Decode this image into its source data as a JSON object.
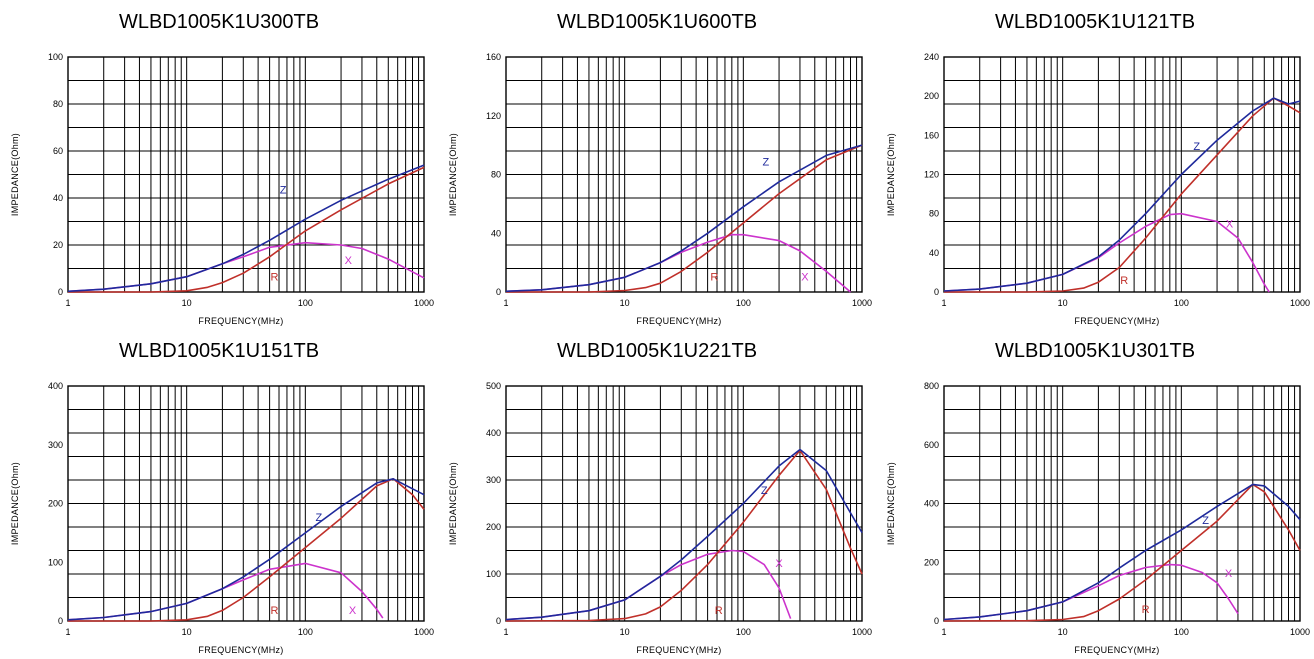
{
  "colors": {
    "Z": "#1f2a9c",
    "R": "#c0302a",
    "X": "#cc33cc",
    "grid": "#000000"
  },
  "chart_data": [
    {
      "type": "line",
      "title": "WLBD1005K1U300TB",
      "xlabel": "FREQUENCY(MHz)",
      "ylabel": "IMPEDANCE(Ohm)",
      "xscale": "log",
      "xlim": [
        1,
        1000
      ],
      "ylim": [
        0,
        100
      ],
      "xticks": [
        "1",
        "10",
        "100",
        "1000"
      ],
      "yticks": [
        "0",
        "20",
        "40",
        "60",
        "80",
        "100"
      ],
      "grid": true,
      "series": [
        {
          "name": "Z",
          "x": [
            1,
            2,
            5,
            10,
            20,
            30,
            50,
            100,
            200,
            500,
            1000
          ],
          "values": [
            0.3,
            1.2,
            3.5,
            6.5,
            12,
            16,
            22,
            31,
            39,
            48,
            54
          ]
        },
        {
          "name": "R",
          "x": [
            1,
            5,
            10,
            15,
            20,
            30,
            50,
            100,
            200,
            500,
            1000
          ],
          "values": [
            0,
            0,
            0.5,
            2,
            4,
            8,
            15,
            26,
            35,
            46,
            53
          ]
        },
        {
          "name": "X",
          "x": [
            1,
            2,
            5,
            10,
            20,
            30,
            50,
            100,
            200,
            300,
            500,
            1000
          ],
          "values": [
            0.3,
            1.2,
            3.5,
            6.5,
            12,
            15,
            19,
            21,
            20,
            18.5,
            14,
            6
          ]
        }
      ],
      "curve_labels": [
        {
          "text": "Z",
          "x": 65,
          "y": 42
        },
        {
          "text": "R",
          "x": 55,
          "y": 5
        },
        {
          "text": "X",
          "x": 230,
          "y": 12
        }
      ]
    },
    {
      "type": "line",
      "title": "WLBD1005K1U600TB",
      "xlabel": "FREQUENCY(MHz)",
      "ylabel": "IMPEDANCE(Ohm)",
      "xscale": "log",
      "xlim": [
        1,
        1000
      ],
      "ylim": [
        0,
        160
      ],
      "xticks": [
        "1",
        "10",
        "100",
        "1000"
      ],
      "yticks": [
        "0",
        "40",
        "80",
        "120",
        "160"
      ],
      "grid": true,
      "series": [
        {
          "name": "Z",
          "x": [
            1,
            2,
            5,
            10,
            20,
            30,
            50,
            100,
            200,
            500,
            1000
          ],
          "values": [
            0.5,
            1.5,
            5,
            10,
            20,
            28,
            40,
            58,
            75,
            93,
            100
          ]
        },
        {
          "name": "R",
          "x": [
            1,
            5,
            10,
            15,
            20,
            30,
            50,
            100,
            200,
            500,
            1000
          ],
          "values": [
            0,
            0,
            1,
            3,
            6,
            14,
            27,
            47,
            67,
            90,
            100
          ]
        },
        {
          "name": "X",
          "x": [
            1,
            2,
            5,
            10,
            20,
            30,
            50,
            80,
            100,
            200,
            300,
            500,
            700,
            800
          ],
          "values": [
            0.5,
            1.5,
            5,
            10,
            20,
            27,
            34,
            39,
            39,
            35,
            28,
            14,
            4,
            0
          ]
        }
      ],
      "curve_labels": [
        {
          "text": "Z",
          "x": 155,
          "y": 86
        },
        {
          "text": "R",
          "x": 57,
          "y": 8
        },
        {
          "text": "X",
          "x": 330,
          "y": 8
        }
      ]
    },
    {
      "type": "line",
      "title": "WLBD1005K1U121TB",
      "xlabel": "FREQUENCY(MHz)",
      "ylabel": "IMPEDANCE(Ohm)",
      "xscale": "log",
      "xlim": [
        1,
        1000
      ],
      "ylim": [
        0,
        240
      ],
      "xticks": [
        "1",
        "10",
        "100",
        "1000"
      ],
      "yticks": [
        "0",
        "40",
        "80",
        "120",
        "160",
        "200",
        "240"
      ],
      "grid": true,
      "series": [
        {
          "name": "Z",
          "x": [
            1,
            2,
            5,
            10,
            20,
            30,
            50,
            100,
            200,
            400,
            600,
            800,
            1000
          ],
          "values": [
            1,
            3,
            9,
            18,
            36,
            53,
            80,
            120,
            155,
            185,
            198,
            192,
            195
          ]
        },
        {
          "name": "R",
          "x": [
            1,
            5,
            10,
            15,
            20,
            30,
            50,
            100,
            200,
            400,
            600,
            800,
            1000
          ],
          "values": [
            0,
            0,
            1,
            4,
            10,
            25,
            55,
            100,
            140,
            180,
            198,
            190,
            183
          ]
        },
        {
          "name": "X",
          "x": [
            1,
            2,
            5,
            10,
            20,
            30,
            50,
            80,
            100,
            200,
            300,
            400,
            500,
            550
          ],
          "values": [
            1,
            3,
            9,
            18,
            35,
            50,
            67,
            79,
            80,
            72,
            55,
            30,
            8,
            0
          ]
        }
      ],
      "curve_labels": [
        {
          "text": "Z",
          "x": 135,
          "y": 145
        },
        {
          "text": "R",
          "x": 33,
          "y": 8
        },
        {
          "text": "X",
          "x": 255,
          "y": 66
        }
      ]
    },
    {
      "type": "line",
      "title": "WLBD1005K1U151TB",
      "xlabel": "FREQUENCY(MHz)",
      "ylabel": "IMPEDANCE(Ohm)",
      "xscale": "log",
      "xlim": [
        1,
        1000
      ],
      "ylim": [
        0,
        400
      ],
      "xticks": [
        "1",
        "10",
        "100",
        "1000"
      ],
      "yticks": [
        "0",
        "100",
        "200",
        "300",
        "400"
      ],
      "grid": true,
      "series": [
        {
          "name": "Z",
          "x": [
            1,
            2,
            5,
            10,
            20,
            30,
            50,
            100,
            200,
            400,
            550,
            800,
            1000
          ],
          "values": [
            2,
            6,
            16,
            30,
            55,
            75,
            105,
            150,
            195,
            235,
            242,
            225,
            215
          ]
        },
        {
          "name": "R",
          "x": [
            1,
            5,
            10,
            15,
            20,
            30,
            50,
            100,
            200,
            400,
            550,
            800,
            1000
          ],
          "values": [
            0,
            0,
            2,
            8,
            18,
            40,
            75,
            125,
            175,
            230,
            242,
            215,
            190
          ]
        },
        {
          "name": "X",
          "x": [
            1,
            2,
            5,
            10,
            20,
            30,
            50,
            100,
            200,
            300,
            400,
            450
          ],
          "values": [
            2,
            6,
            16,
            30,
            55,
            70,
            88,
            98,
            82,
            50,
            20,
            5
          ]
        }
      ],
      "curve_labels": [
        {
          "text": "Z",
          "x": 130,
          "y": 170
        },
        {
          "text": "R",
          "x": 55,
          "y": 12
        },
        {
          "text": "X",
          "x": 250,
          "y": 12
        }
      ]
    },
    {
      "type": "line",
      "title": "WLBD1005K1U221TB",
      "xlabel": "FREQUENCY(MHz)",
      "ylabel": "IMPEDANCE(Ohm)",
      "xscale": "log",
      "xlim": [
        1,
        1000
      ],
      "ylim": [
        0,
        500
      ],
      "xticks": [
        "1",
        "10",
        "100",
        "1000"
      ],
      "yticks": [
        "0",
        "100",
        "200",
        "300",
        "400",
        "500"
      ],
      "grid": true,
      "series": [
        {
          "name": "Z",
          "x": [
            1,
            2,
            5,
            10,
            20,
            30,
            50,
            100,
            200,
            300,
            500,
            800,
            1000
          ],
          "values": [
            3,
            8,
            22,
            45,
            95,
            130,
            180,
            250,
            330,
            365,
            320,
            230,
            188
          ]
        },
        {
          "name": "R",
          "x": [
            1,
            5,
            10,
            15,
            20,
            30,
            50,
            100,
            200,
            300,
            500,
            800,
            1000
          ],
          "values": [
            0,
            1,
            5,
            15,
            30,
            65,
            120,
            210,
            310,
            363,
            280,
            155,
            100
          ]
        },
        {
          "name": "X",
          "x": [
            1,
            2,
            5,
            10,
            20,
            30,
            50,
            80,
            100,
            150,
            200,
            250
          ],
          "values": [
            3,
            8,
            22,
            45,
            95,
            120,
            142,
            150,
            148,
            120,
            70,
            5
          ]
        }
      ],
      "curve_labels": [
        {
          "text": "Z",
          "x": 150,
          "y": 270
        },
        {
          "text": "R",
          "x": 62,
          "y": 15
        },
        {
          "text": "X",
          "x": 200,
          "y": 115
        }
      ]
    },
    {
      "type": "line",
      "title": "WLBD1005K1U301TB",
      "xlabel": "FREQUENCY(MHz)",
      "ylabel": "IMPEDANCE(Ohm)",
      "xscale": "log",
      "xlim": [
        1,
        1000
      ],
      "ylim": [
        0,
        800
      ],
      "xticks": [
        "1",
        "10",
        "100",
        "1000"
      ],
      "yticks": [
        "0",
        "200",
        "400",
        "600",
        "800"
      ],
      "grid": true,
      "series": [
        {
          "name": "Z",
          "x": [
            1,
            2,
            5,
            10,
            20,
            30,
            50,
            100,
            200,
            400,
            500,
            800,
            1000
          ],
          "values": [
            5,
            14,
            35,
            65,
            130,
            180,
            240,
            310,
            390,
            465,
            460,
            390,
            345
          ]
        },
        {
          "name": "R",
          "x": [
            1,
            5,
            10,
            15,
            20,
            30,
            50,
            100,
            200,
            400,
            500,
            800,
            1000
          ],
          "values": [
            0,
            1,
            5,
            15,
            35,
            75,
            140,
            240,
            340,
            465,
            440,
            310,
            240
          ]
        },
        {
          "name": "X",
          "x": [
            1,
            2,
            5,
            10,
            20,
            30,
            50,
            80,
            100,
            150,
            200,
            250,
            300
          ],
          "values": [
            5,
            14,
            35,
            65,
            120,
            155,
            182,
            192,
            190,
            165,
            130,
            75,
            25
          ]
        }
      ],
      "curve_labels": [
        {
          "text": "Z",
          "x": 160,
          "y": 330
        },
        {
          "text": "R",
          "x": 50,
          "y": 28
        },
        {
          "text": "X",
          "x": 250,
          "y": 150
        }
      ]
    }
  ]
}
